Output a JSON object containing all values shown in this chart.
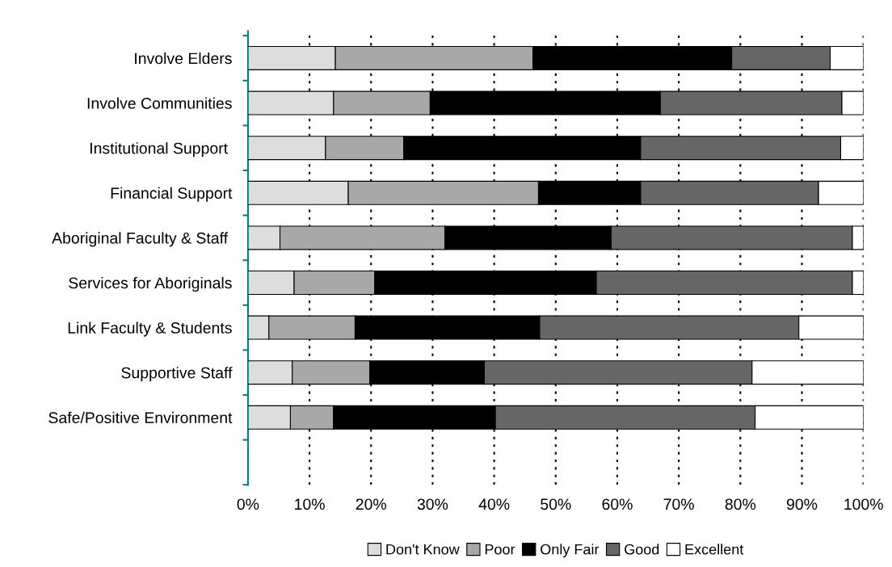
{
  "chart_data": {
    "type": "bar",
    "orientation": "horizontal",
    "stacked": true,
    "categories": [
      "Involve Elders",
      "Involve Communities",
      "Institutional Support ",
      "Financial Support",
      "Aboriginal Faculty & Staff ",
      "Services for Aboriginals",
      "Link Faculty & Students",
      "Supportive Staff",
      "Safe/Positive Environment"
    ],
    "series": [
      {
        "name": "Don't Know",
        "color": "#dddddd",
        "values": [
          14.2,
          13.9,
          12.6,
          16.3,
          5.2,
          7.5,
          3.4,
          7.2,
          6.9
        ]
      },
      {
        "name": "Poor",
        "color": "#a8a8a8",
        "values": [
          32.1,
          15.7,
          12.7,
          30.9,
          26.8,
          13.1,
          14.0,
          12.6,
          7.0
        ]
      },
      {
        "name": "Only Fair",
        "color": "#000000",
        "values": [
          32.3,
          37.4,
          38.5,
          16.6,
          27.0,
          36.0,
          30.0,
          18.6,
          26.3
        ]
      },
      {
        "name": "Good",
        "color": "#666666",
        "values": [
          16.0,
          29.5,
          32.5,
          28.9,
          39.2,
          41.6,
          42.1,
          43.5,
          42.2
        ]
      },
      {
        "name": "Excellent",
        "color": "#ffffff",
        "values": [
          5.4,
          3.5,
          3.7,
          7.3,
          1.8,
          1.8,
          10.5,
          18.1,
          17.6
        ]
      }
    ],
    "xlim": [
      0,
      100
    ],
    "xticks": [
      {
        "value": 0,
        "label": "0%"
      },
      {
        "value": 10,
        "label": "10%"
      },
      {
        "value": 20,
        "label": "20%"
      },
      {
        "value": 30,
        "label": "30%"
      },
      {
        "value": 40,
        "label": "40%"
      },
      {
        "value": 50,
        "label": "50%"
      },
      {
        "value": 60,
        "label": "60%"
      },
      {
        "value": 70,
        "label": "70%"
      },
      {
        "value": 80,
        "label": "80%"
      },
      {
        "value": 90,
        "label": "90%"
      },
      {
        "value": 100,
        "label": "100%"
      }
    ],
    "grid": "x",
    "legend": "bottom"
  }
}
